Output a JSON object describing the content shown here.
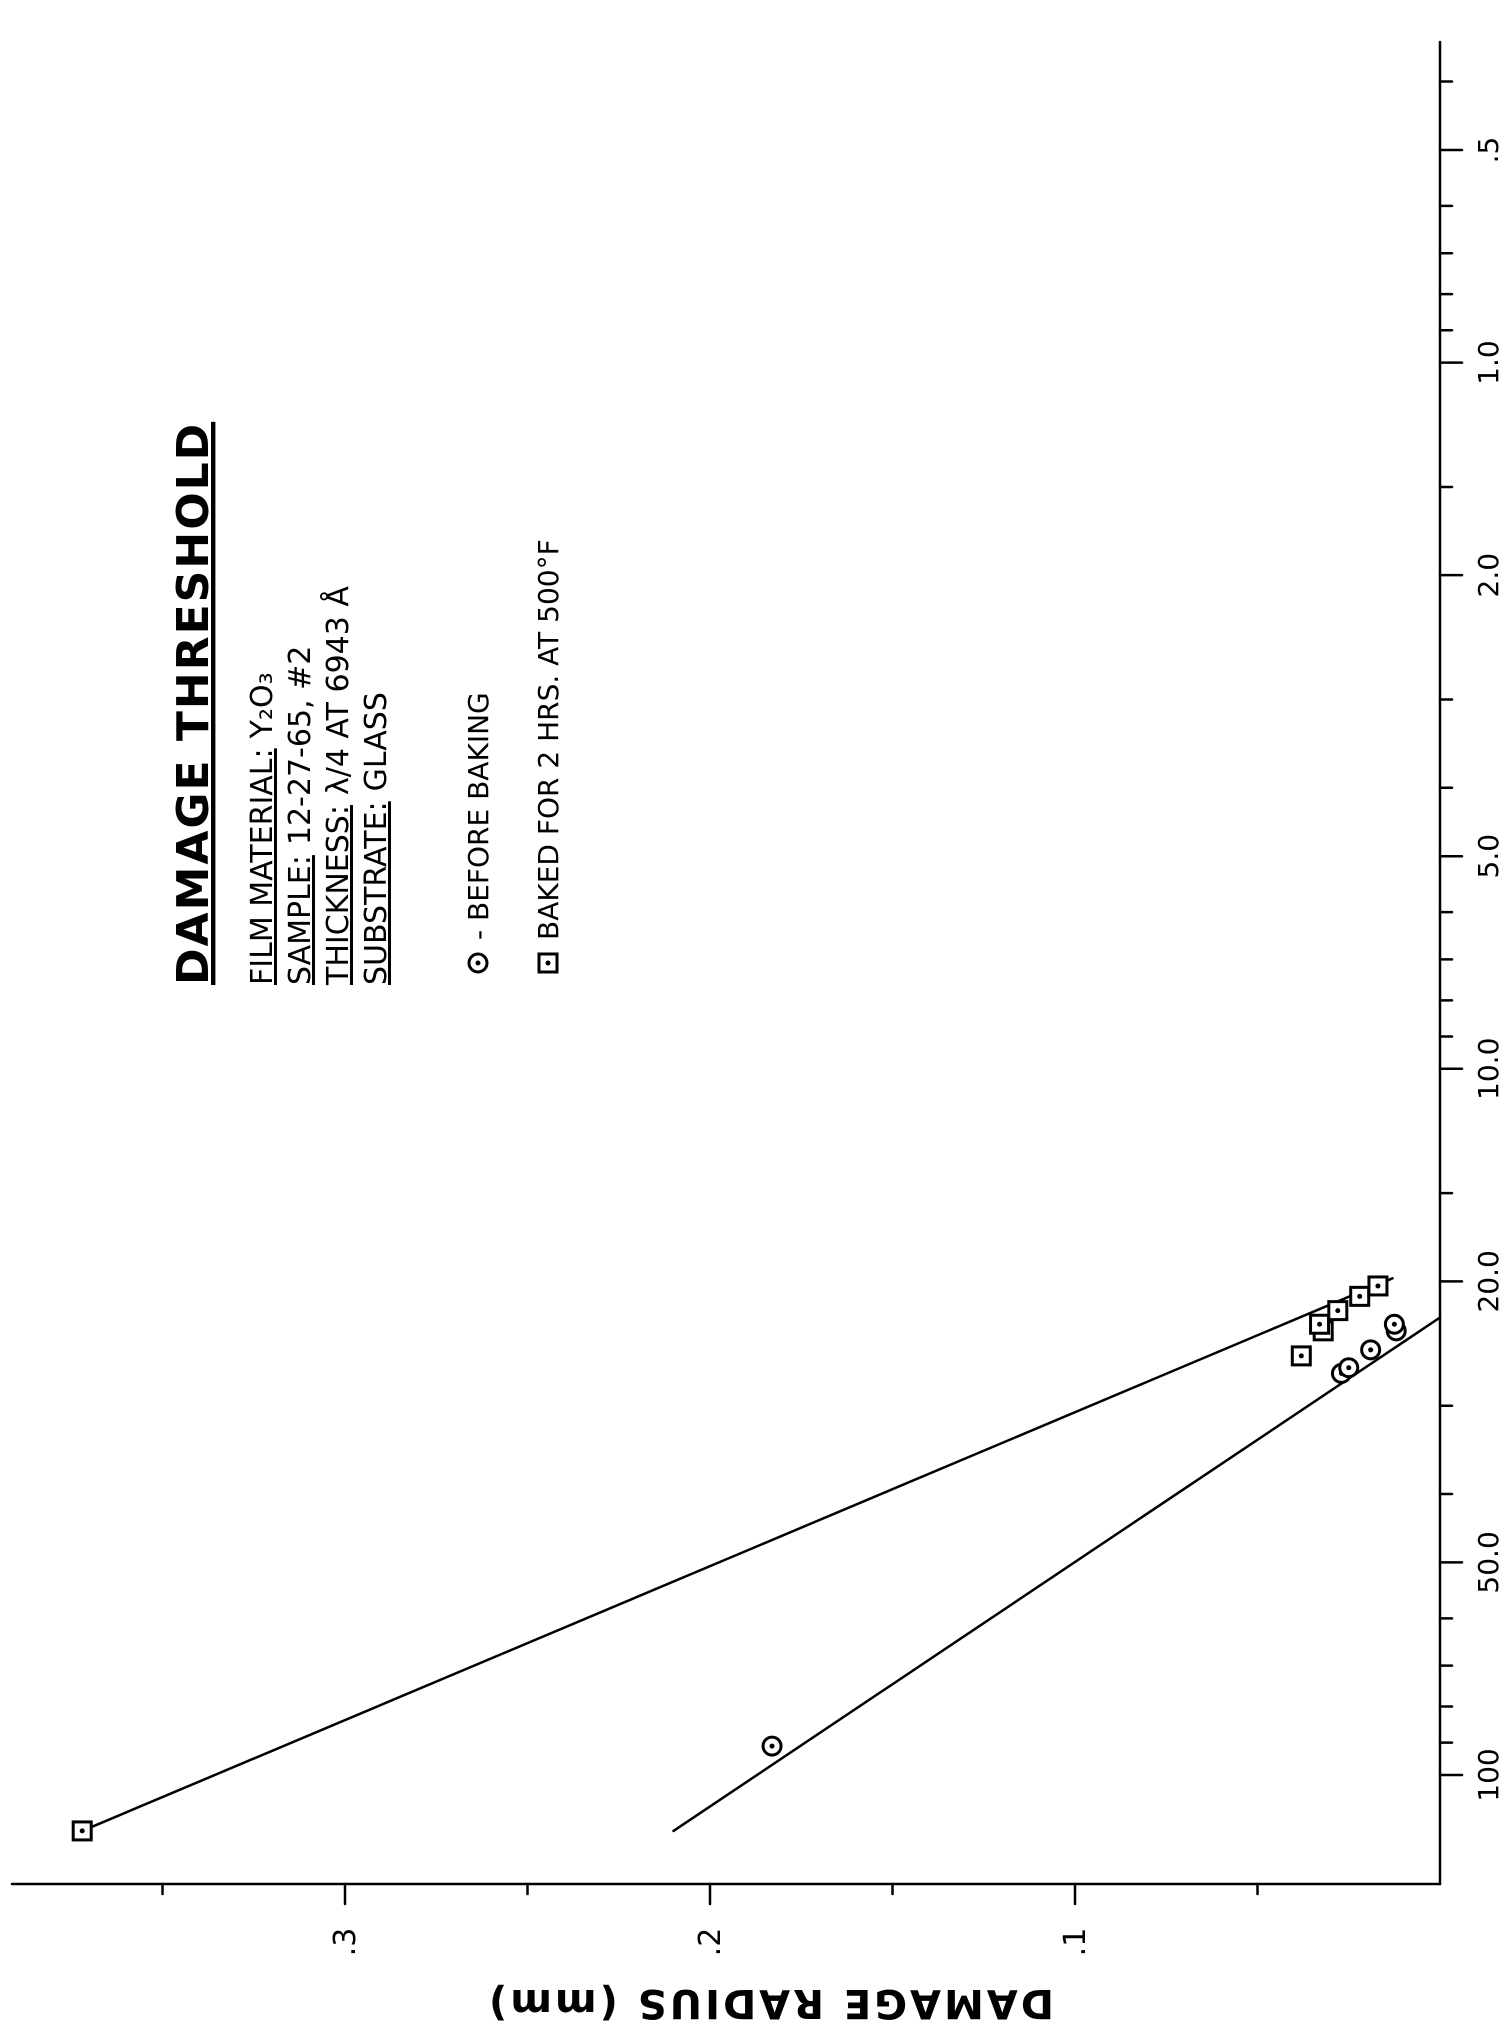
{
  "chart_data": {
    "type": "line",
    "title": "DAMAGE THRESHOLD",
    "ylabel": "DAMAGE RADIUS (mm)",
    "xscale": "log",
    "xticks": [
      ".5",
      "1.0",
      "2.0",
      "5.0",
      "10.0",
      "20.0",
      "50.0",
      "100"
    ],
    "yticks": [
      ".1",
      ".2",
      ".3"
    ],
    "xlim": [
      0.3,
      150
    ],
    "ylim": [
      0,
      0.38
    ],
    "info": [
      {
        "label": "FILM MATERIAL:",
        "value": "Y₂O₃"
      },
      {
        "label": "SAMPLE:",
        "value": "12-27-65, #2"
      },
      {
        "label": "THICKNESS:",
        "value": "λ/4 AT 6943 Å"
      },
      {
        "label": "SUBSTRATE:",
        "value": "GLASS"
      }
    ],
    "legend": [
      {
        "marker": "circle-dot",
        "text": "- BEFORE BAKING"
      },
      {
        "marker": "square-dot",
        "text": "BAKED FOR 2 HRS. AT 500°F"
      }
    ],
    "series": [
      {
        "name": "BEFORE BAKING",
        "marker": "circle-dot",
        "points": [
          [
            91,
            0.183
          ],
          [
            27,
            0.027
          ],
          [
            26.5,
            0.025
          ],
          [
            25,
            0.019
          ],
          [
            23.5,
            0.012
          ],
          [
            23,
            0.0125
          ]
        ],
        "fit": [
          [
            120,
            0.21
          ],
          [
            22.5,
            0.0
          ]
        ]
      },
      {
        "name": "BAKED FOR 2 HRS. AT 500°F",
        "marker": "square-dot",
        "points": [
          [
            120,
            0.372
          ],
          [
            25.5,
            0.038
          ],
          [
            23.5,
            0.032
          ],
          [
            23,
            0.033
          ],
          [
            22,
            0.028
          ],
          [
            21,
            0.022
          ],
          [
            20.3,
            0.017
          ]
        ],
        "fit": [
          [
            120,
            0.372
          ],
          [
            19.8,
            0.013
          ]
        ]
      }
    ]
  }
}
